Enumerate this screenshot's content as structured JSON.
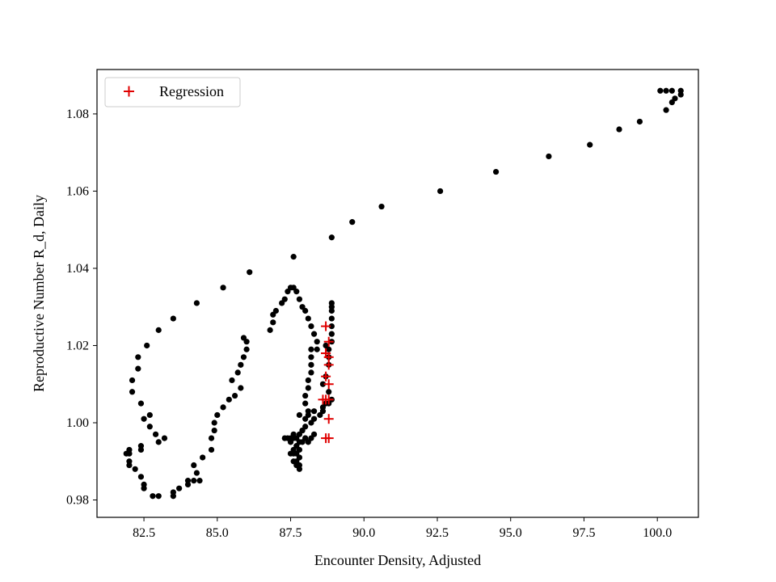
{
  "chart_data": {
    "type": "scatter",
    "xlabel": "Encounter Density, Adjusted",
    "ylabel": "Reproductive Number R_d, Daily",
    "xlim": [
      80.9,
      101.4
    ],
    "ylim": [
      0.9755,
      1.0915
    ],
    "xticks": [
      82.5,
      85.0,
      87.5,
      90.0,
      92.5,
      95.0,
      97.5,
      100.0
    ],
    "xtick_labels": [
      "82.5",
      "85.0",
      "87.5",
      "90.0",
      "92.5",
      "95.0",
      "97.5",
      "100.0"
    ],
    "yticks": [
      0.98,
      1.0,
      1.02,
      1.04,
      1.06,
      1.08
    ],
    "ytick_labels": [
      "0.98",
      "1.00",
      "1.02",
      "1.04",
      "1.06",
      "1.08"
    ],
    "grid": false,
    "legend": "top-left",
    "series": [
      {
        "marker": "dot",
        "color": "#000000",
        "points": [
          [
            100.1,
            1.086
          ],
          [
            100.3,
            1.086
          ],
          [
            100.5,
            1.086
          ],
          [
            100.8,
            1.086
          ],
          [
            100.8,
            1.085
          ],
          [
            100.6,
            1.084
          ],
          [
            100.5,
            1.083
          ],
          [
            100.3,
            1.081
          ],
          [
            99.4,
            1.078
          ],
          [
            98.7,
            1.076
          ],
          [
            97.7,
            1.072
          ],
          [
            96.3,
            1.069
          ],
          [
            94.5,
            1.065
          ],
          [
            92.6,
            1.06
          ],
          [
            90.6,
            1.056
          ],
          [
            89.6,
            1.052
          ],
          [
            88.9,
            1.048
          ],
          [
            87.6,
            1.043
          ],
          [
            86.1,
            1.039
          ],
          [
            85.2,
            1.035
          ],
          [
            84.3,
            1.031
          ],
          [
            83.5,
            1.027
          ],
          [
            83.0,
            1.024
          ],
          [
            82.6,
            1.02
          ],
          [
            82.3,
            1.017
          ],
          [
            82.3,
            1.014
          ],
          [
            82.1,
            1.011
          ],
          [
            82.1,
            1.008
          ],
          [
            82.4,
            1.005
          ],
          [
            82.5,
            1.001
          ],
          [
            82.7,
            1.002
          ],
          [
            82.7,
            0.999
          ],
          [
            82.9,
            0.997
          ],
          [
            83.2,
            0.996
          ],
          [
            83.0,
            0.995
          ],
          [
            82.4,
            0.994
          ],
          [
            82.4,
            0.993
          ],
          [
            82.0,
            0.993
          ],
          [
            82.0,
            0.992
          ],
          [
            81.9,
            0.992
          ],
          [
            82.0,
            0.99
          ],
          [
            82.0,
            0.989
          ],
          [
            82.2,
            0.988
          ],
          [
            82.4,
            0.986
          ],
          [
            82.5,
            0.984
          ],
          [
            82.5,
            0.983
          ],
          [
            82.8,
            0.981
          ],
          [
            83.0,
            0.981
          ],
          [
            83.5,
            0.981
          ],
          [
            83.5,
            0.982
          ],
          [
            83.7,
            0.983
          ],
          [
            84.0,
            0.984
          ],
          [
            84.0,
            0.985
          ],
          [
            84.2,
            0.985
          ],
          [
            84.4,
            0.985
          ],
          [
            84.3,
            0.987
          ],
          [
            84.2,
            0.989
          ],
          [
            84.5,
            0.991
          ],
          [
            84.8,
            0.993
          ],
          [
            84.8,
            0.996
          ],
          [
            84.9,
            0.998
          ],
          [
            84.9,
            1.0
          ],
          [
            85.0,
            1.002
          ],
          [
            85.2,
            1.004
          ],
          [
            85.4,
            1.006
          ],
          [
            85.6,
            1.007
          ],
          [
            85.5,
            1.011
          ],
          [
            85.7,
            1.013
          ],
          [
            85.8,
            1.015
          ],
          [
            85.9,
            1.017
          ],
          [
            86.0,
            1.019
          ],
          [
            86.0,
            1.021
          ],
          [
            85.9,
            1.022
          ],
          [
            85.8,
            1.009
          ],
          [
            86.8,
            1.024
          ],
          [
            86.9,
            1.026
          ],
          [
            86.9,
            1.028
          ],
          [
            87.0,
            1.029
          ],
          [
            87.2,
            1.031
          ],
          [
            87.3,
            1.032
          ],
          [
            87.4,
            1.034
          ],
          [
            87.5,
            1.035
          ],
          [
            87.6,
            1.035
          ],
          [
            87.7,
            1.034
          ],
          [
            87.8,
            1.032
          ],
          [
            87.9,
            1.03
          ],
          [
            88.0,
            1.029
          ],
          [
            88.1,
            1.027
          ],
          [
            88.2,
            1.025
          ],
          [
            88.3,
            1.023
          ],
          [
            88.4,
            1.021
          ],
          [
            88.4,
            1.019
          ],
          [
            88.2,
            1.019
          ],
          [
            88.2,
            1.017
          ],
          [
            88.2,
            1.015
          ],
          [
            88.2,
            1.013
          ],
          [
            88.1,
            1.011
          ],
          [
            88.1,
            1.009
          ],
          [
            88.0,
            1.007
          ],
          [
            88.0,
            1.005
          ],
          [
            87.8,
            1.002
          ],
          [
            87.6,
            0.997
          ],
          [
            87.5,
            0.995
          ],
          [
            87.5,
            0.992
          ],
          [
            88.9,
            1.031
          ],
          [
            88.9,
            1.03
          ],
          [
            88.9,
            1.029
          ],
          [
            88.9,
            1.027
          ],
          [
            88.9,
            1.025
          ],
          [
            88.9,
            1.023
          ],
          [
            88.9,
            1.021
          ],
          [
            88.7,
            1.02
          ],
          [
            88.8,
            1.019
          ],
          [
            88.8,
            1.017
          ],
          [
            88.8,
            1.015
          ],
          [
            88.7,
            1.012
          ],
          [
            88.6,
            1.01
          ],
          [
            88.8,
            1.008
          ],
          [
            88.9,
            1.006
          ],
          [
            88.8,
            1.005
          ],
          [
            88.7,
            1.005
          ],
          [
            88.6,
            1.004
          ],
          [
            88.6,
            1.003
          ],
          [
            88.5,
            1.002
          ],
          [
            88.3,
            1.003
          ],
          [
            88.3,
            1.001
          ],
          [
            88.1,
            1.002
          ],
          [
            88.2,
            1.0
          ],
          [
            88.0,
            0.999
          ],
          [
            87.9,
            0.998
          ],
          [
            87.8,
            0.997
          ],
          [
            88.0,
            0.996
          ],
          [
            88.2,
            0.996
          ],
          [
            88.3,
            0.997
          ],
          [
            88.1,
            0.995
          ],
          [
            88.0,
            0.996
          ],
          [
            87.9,
            0.995
          ],
          [
            87.8,
            0.995
          ],
          [
            87.7,
            0.996
          ],
          [
            87.6,
            0.996
          ],
          [
            87.7,
            0.994
          ],
          [
            87.8,
            0.993
          ],
          [
            87.7,
            0.992
          ],
          [
            87.8,
            0.991
          ],
          [
            87.7,
            0.99
          ],
          [
            87.8,
            0.989
          ],
          [
            87.8,
            0.988
          ],
          [
            87.7,
            0.989
          ],
          [
            87.6,
            0.99
          ],
          [
            87.6,
            0.992
          ],
          [
            87.6,
            0.993
          ],
          [
            87.5,
            0.996
          ],
          [
            87.4,
            0.996
          ],
          [
            87.3,
            0.996
          ],
          [
            87.9,
            0.998
          ],
          [
            88.0,
            1.001
          ],
          [
            88.1,
            1.003
          ]
        ]
      },
      {
        "name": "Regression",
        "marker": "plus",
        "color": "#e00000",
        "points": [
          [
            88.7,
            1.025
          ],
          [
            88.8,
            1.021
          ],
          [
            88.7,
            1.018
          ],
          [
            88.8,
            1.017
          ],
          [
            88.7,
            1.018
          ],
          [
            88.8,
            1.015
          ],
          [
            88.7,
            1.012
          ],
          [
            88.8,
            1.01
          ],
          [
            88.6,
            1.006
          ],
          [
            88.8,
            1.006
          ],
          [
            88.7,
            1.006
          ],
          [
            88.8,
            1.001
          ],
          [
            88.8,
            0.996
          ],
          [
            88.7,
            0.996
          ]
        ]
      }
    ]
  }
}
